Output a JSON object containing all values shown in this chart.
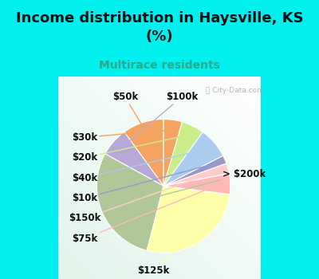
{
  "title": "Income distribution in Haysville, KS\n(%)",
  "subtitle": "Multirace residents",
  "title_color": "#111111",
  "subtitle_color": "#2aaa88",
  "background_cyan": "#00f0f0",
  "background_chart": "#e0f2ee",
  "labels": [
    "$50k",
    "$100k",
    "> $200k",
    "$125k",
    "$75k",
    "$150k",
    "$10k",
    "$40k",
    "$20k",
    "$30k"
  ],
  "values": [
    10.0,
    7.0,
    29.0,
    27.0,
    5.0,
    2.5,
    2.0,
    7.5,
    5.5,
    4.5
  ],
  "colors": [
    "#f4a460",
    "#b8a8d8",
    "#b0c898",
    "#ffffaa",
    "#ffb8b8",
    "#ffcccc",
    "#9898cc",
    "#aaccee",
    "#ccee88",
    "#f4a460"
  ],
  "label_fontsize": 8.5,
  "title_fontsize": 13,
  "subtitle_fontsize": 10,
  "startangle": 90
}
